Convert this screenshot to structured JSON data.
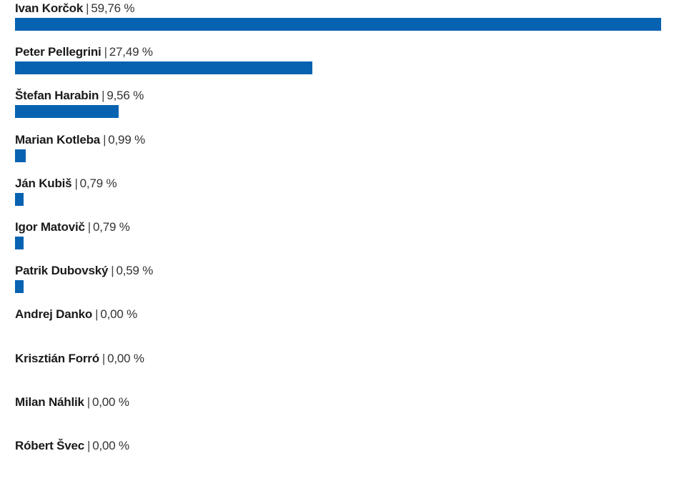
{
  "colors": {
    "bar": "#0762b1",
    "background": "#ffffff"
  },
  "separator": "|",
  "chart_data": {
    "type": "bar",
    "orientation": "horizontal",
    "categories": [
      "Ivan Korčok",
      "Peter Pellegrini",
      "Štefan Harabin",
      "Marian Kotleba",
      "Ján Kubiš",
      "Igor Matovič",
      "Patrik Dubovský",
      "Andrej Danko",
      "Krisztián Forró",
      "Milan Náhlik",
      "Róbert Švec"
    ],
    "values": [
      59.76,
      27.49,
      9.56,
      0.99,
      0.79,
      0.79,
      0.59,
      0.0,
      0.0,
      0.0,
      0.0
    ],
    "value_labels": [
      "59,76 %",
      "27,49 %",
      "9,56 %",
      "0,99 %",
      "0,79 %",
      "0,79 %",
      "0,59 %",
      "0,00 %",
      "0,00 %",
      "0,00 %",
      "0,00 %"
    ],
    "title": "",
    "xlabel": "",
    "ylabel": "",
    "xlim": [
      0,
      59.76
    ],
    "grid": false,
    "legend": "none"
  }
}
